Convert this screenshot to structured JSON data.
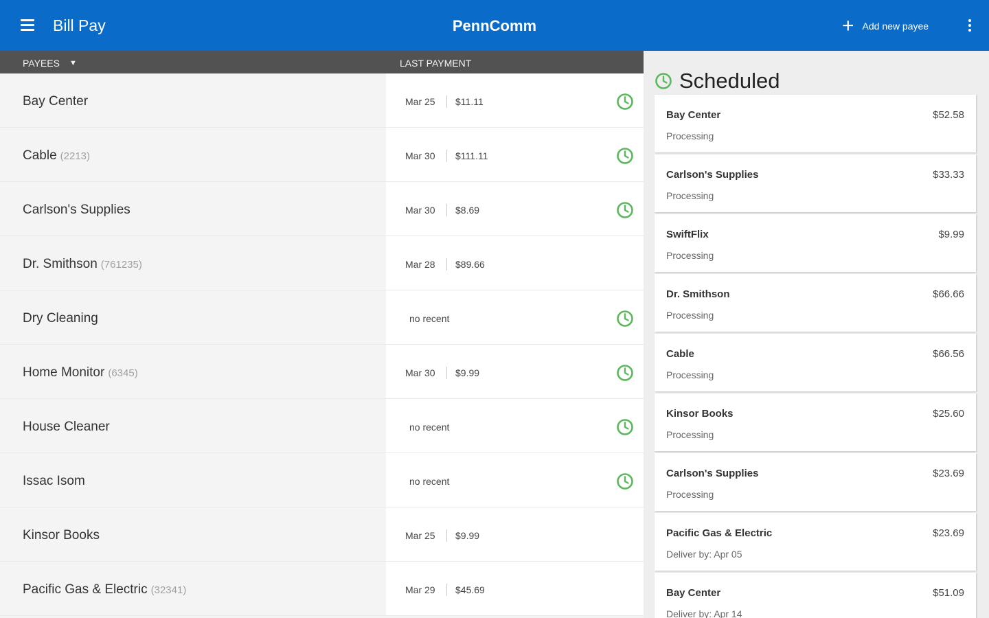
{
  "appbar": {
    "title": "Bill Pay",
    "brand": "PennComm",
    "add_label": "Add new payee"
  },
  "table": {
    "header_payees": "PAYEES",
    "header_last_payment": "LAST PAYMENT"
  },
  "payees": [
    {
      "name": "Bay Center",
      "account": "",
      "date": "Mar 25",
      "amount": "$11.11",
      "none": "",
      "scheduled": true
    },
    {
      "name": "Cable",
      "account": "(2213)",
      "date": "Mar 30",
      "amount": "$111.11",
      "none": "",
      "scheduled": true
    },
    {
      "name": "Carlson's Supplies",
      "account": "",
      "date": "Mar 30",
      "amount": "$8.69",
      "none": "",
      "scheduled": true
    },
    {
      "name": "Dr. Smithson",
      "account": "(761235)",
      "date": "Mar 28",
      "amount": "$89.66",
      "none": "",
      "scheduled": false
    },
    {
      "name": "Dry Cleaning",
      "account": "",
      "date": "",
      "amount": "",
      "none": "no recent",
      "scheduled": true
    },
    {
      "name": "Home Monitor",
      "account": "(6345)",
      "date": "Mar 30",
      "amount": "$9.99",
      "none": "",
      "scheduled": true
    },
    {
      "name": "House Cleaner",
      "account": "",
      "date": "",
      "amount": "",
      "none": "no recent",
      "scheduled": true
    },
    {
      "name": "Issac Isom",
      "account": "",
      "date": "",
      "amount": "",
      "none": "no recent",
      "scheduled": true
    },
    {
      "name": "Kinsor Books",
      "account": "",
      "date": "Mar 25",
      "amount": "$9.99",
      "none": "",
      "scheduled": false
    },
    {
      "name": "Pacific Gas & Electric",
      "account": "(32341)",
      "date": "Mar 29",
      "amount": "$45.69",
      "none": "",
      "scheduled": false
    }
  ],
  "scheduled": {
    "title": "Scheduled",
    "items": [
      {
        "name": "Bay Center",
        "amount": "$52.58",
        "status": "Processing"
      },
      {
        "name": "Carlson's Supplies",
        "amount": "$33.33",
        "status": "Processing"
      },
      {
        "name": "SwiftFlix",
        "amount": "$9.99",
        "status": "Processing"
      },
      {
        "name": "Dr. Smithson",
        "amount": "$66.66",
        "status": "Processing"
      },
      {
        "name": "Cable",
        "amount": "$66.56",
        "status": "Processing"
      },
      {
        "name": "Kinsor Books",
        "amount": "$25.60",
        "status": "Processing"
      },
      {
        "name": "Carlson's Supplies",
        "amount": "$23.69",
        "status": "Processing"
      },
      {
        "name": "Pacific Gas & Electric",
        "amount": "$23.69",
        "status": "Deliver by: Apr 05"
      },
      {
        "name": "Bay Center",
        "amount": "$51.09",
        "status": "Deliver by: Apr 14"
      }
    ]
  },
  "colors": {
    "appbar": "#0a6bc8",
    "header": "#525252",
    "accent_green": "#5cb85c"
  },
  "icons": {
    "menu": "hamburger-menu-icon",
    "add": "plus-icon",
    "more": "vertical-dots-icon",
    "schedule": "clock-icon",
    "dropdown": "caret-down-icon"
  }
}
